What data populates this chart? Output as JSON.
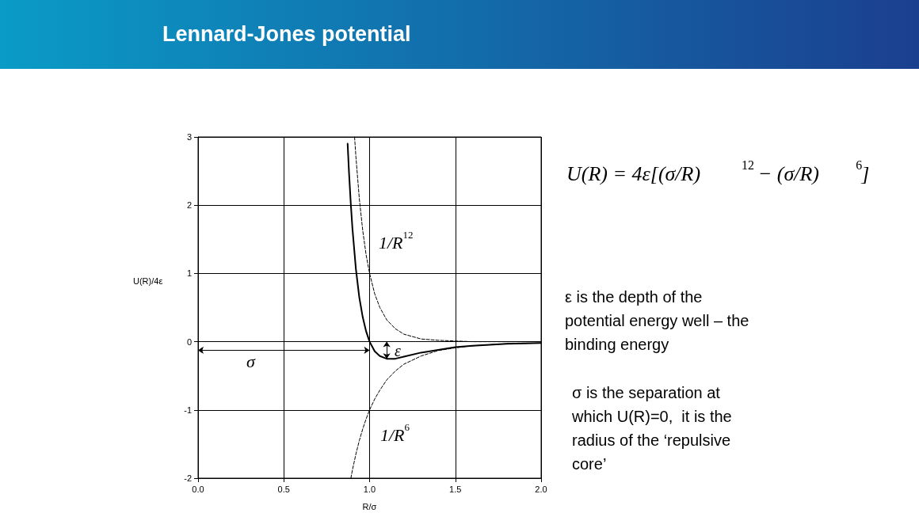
{
  "chart_data": {
    "type": "line",
    "title": "Lennard-Jones potential",
    "xlabel": "R/σ",
    "ylabel": "U(R)/4ε",
    "xlim": [
      0,
      2
    ],
    "ylim": [
      -2,
      3
    ],
    "xticks": [
      {
        "value": 0,
        "label": "0.0"
      },
      {
        "value": 0.5,
        "label": "0.5"
      },
      {
        "value": 1,
        "label": "1.0"
      },
      {
        "value": 1.5,
        "label": "1.5"
      },
      {
        "value": 2,
        "label": "2.0"
      }
    ],
    "yticks": [
      -2,
      -1,
      0,
      1,
      2,
      3
    ],
    "grid": true,
    "marker": "none",
    "series": [
      {
        "color": "#000000",
        "line_style": "solid",
        "x": [
          0.872,
          0.88,
          0.89,
          0.9,
          0.92,
          0.94,
          0.96,
          0.98,
          1.0,
          1.03,
          1.06,
          1.1,
          1.12,
          1.15,
          1.2,
          1.3,
          1.4,
          1.5,
          1.6,
          1.8,
          2.0
        ],
        "values": [
          2.9,
          2.48,
          2.04,
          1.66,
          1.07,
          0.65,
          0.36,
          0.15,
          0,
          -0.14,
          -0.21,
          -0.25,
          -0.25,
          -0.25,
          -0.22,
          -0.16,
          -0.12,
          -0.08,
          -0.06,
          -0.03,
          -0.02
        ]
      },
      {
        "color": "#000000",
        "line_style": "dashed",
        "x": [
          0.9125,
          0.92,
          0.94,
          0.96,
          0.98,
          1.0,
          1.03,
          1.06,
          1.1,
          1.15,
          1.2,
          1.3,
          1.4,
          1.5,
          1.6,
          2.0
        ],
        "values": [
          3,
          2.72,
          2.1,
          1.63,
          1.27,
          1,
          0.7,
          0.5,
          0.32,
          0.19,
          0.11,
          0.04,
          0.02,
          0.01,
          0,
          0
        ]
      },
      {
        "color": "#000000",
        "line_style": "dashed",
        "x": [
          0.891,
          0.9,
          0.92,
          0.94,
          0.96,
          0.98,
          1.0,
          1.03,
          1.06,
          1.1,
          1.15,
          1.2,
          1.3,
          1.4,
          1.5,
          1.6,
          1.8,
          2.0
        ],
        "values": [
          -2,
          -1.88,
          -1.65,
          -1.45,
          -1.28,
          -1.13,
          -1,
          -0.84,
          -0.71,
          -0.56,
          -0.43,
          -0.33,
          -0.21,
          -0.13,
          -0.09,
          -0.06,
          -0.03,
          -0.02
        ]
      }
    ],
    "annotations": [
      "1/R$^{12}$",
      "1/R$^{6}$",
      "σ",
      "ε",
      "U(R) = 4ε[(σ/R)$^{12}$ − (σ/R)$^{6}$]",
      "ε is the depth of the potential energy well – the binding energy",
      "σ is the separation at which U(R)=0,  it is the radius of the ‘repulsive core’"
    ]
  }
}
